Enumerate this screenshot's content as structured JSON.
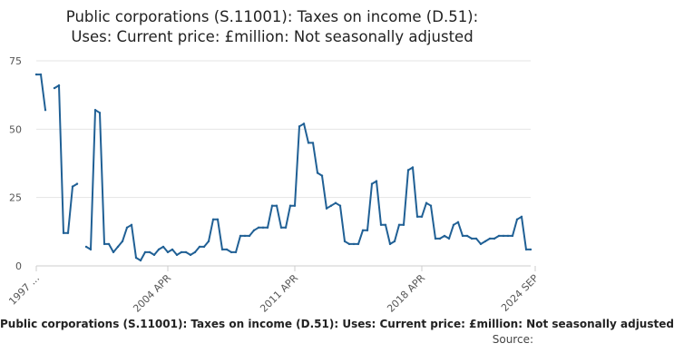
{
  "chart_data": {
    "type": "line",
    "title_line1": "Public corporations (S.11001): Taxes on income (D.51):",
    "title_line2": "Uses: Current price: £million: Not seasonally adjusted",
    "caption": "Public corporations (S.11001): Taxes on income (D.51): Uses: Current price: £million: Not seasonally adjusted",
    "source_label": "Source:",
    "xlabel": "",
    "ylabel": "",
    "ylim": [
      0,
      75
    ],
    "yticks": [
      0,
      25,
      50,
      75
    ],
    "xtick_labels": [
      "1997 ...",
      "2004 APR",
      "2011 APR",
      "2018 APR",
      "2024 SEP"
    ],
    "xtick_index": [
      0,
      29,
      57,
      85,
      110
    ],
    "series_name": "Taxes on income (D.51)",
    "series_color": "#206095",
    "values": [
      70,
      70,
      57,
      null,
      65,
      66,
      12,
      12,
      29,
      30,
      null,
      7,
      6,
      57,
      56,
      8,
      8,
      5,
      7,
      9,
      14,
      15,
      3,
      2,
      5,
      5,
      4,
      6,
      7,
      5,
      6,
      4,
      5,
      5,
      4,
      5,
      7,
      7,
      9,
      17,
      17,
      6,
      6,
      5,
      5,
      11,
      11,
      11,
      13,
      14,
      14,
      14,
      22,
      22,
      14,
      14,
      22,
      22,
      51,
      52,
      45,
      45,
      34,
      33,
      21,
      22,
      23,
      22,
      9,
      8,
      8,
      8,
      13,
      13,
      30,
      31,
      15,
      15,
      8,
      9,
      15,
      15,
      35,
      36,
      18,
      18,
      23,
      22,
      10,
      10,
      11,
      10,
      15,
      16,
      11,
      11,
      10,
      10,
      8,
      9,
      10,
      10,
      11,
      11,
      11,
      11,
      17,
      18,
      6,
      6
    ]
  }
}
